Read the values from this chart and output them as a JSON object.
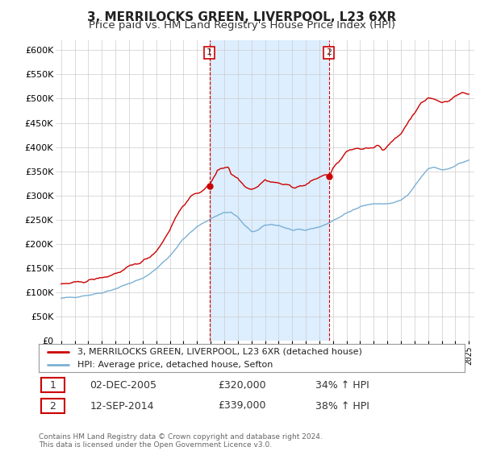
{
  "title": "3, MERRILOCKS GREEN, LIVERPOOL, L23 6XR",
  "subtitle": "Price paid vs. HM Land Registry's House Price Index (HPI)",
  "title_fontsize": 11,
  "subtitle_fontsize": 9.5,
  "background_color": "#ffffff",
  "plot_bg_color": "#ffffff",
  "shade_color": "#ddeeff",
  "ylim": [
    0,
    620000
  ],
  "yticks": [
    0,
    50000,
    100000,
    150000,
    200000,
    250000,
    300000,
    350000,
    400000,
    450000,
    500000,
    550000,
    600000
  ],
  "legend_line1": "3, MERRILOCKS GREEN, LIVERPOOL, L23 6XR (detached house)",
  "legend_line2": "HPI: Average price, detached house, Sefton",
  "line1_color": "#cc0000",
  "line2_color": "#7ab0d4",
  "annotation1_label": "1",
  "annotation1_date": "02-DEC-2005",
  "annotation1_price": "£320,000",
  "annotation1_pct": "34% ↑ HPI",
  "annotation2_label": "2",
  "annotation2_date": "12-SEP-2014",
  "annotation2_price": "£339,000",
  "annotation2_pct": "38% ↑ HPI",
  "footer": "Contains HM Land Registry data © Crown copyright and database right 2024.\nThis data is licensed under the Open Government Licence v3.0.",
  "sale1_year": 2005.917,
  "sale1_price": 320000,
  "sale2_year": 2014.708,
  "sale2_price": 339000,
  "grid_color": "#cccccc",
  "box_color": "#cc0000"
}
